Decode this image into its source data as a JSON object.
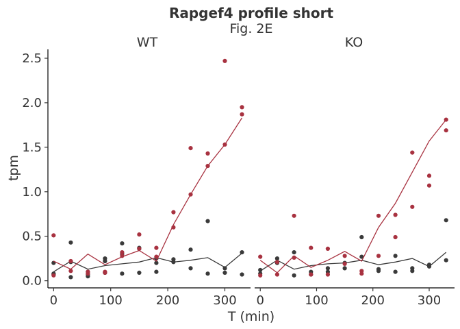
{
  "chart_data": {
    "type": "scatter",
    "title": "Rapgef4 profile short",
    "subtitle": "Fig. 2E",
    "xlabel": "T (min)",
    "ylabel": "tpm",
    "xlim": [
      -10,
      345
    ],
    "ylim": [
      -0.08,
      2.6
    ],
    "x_ticks": [
      0,
      100,
      200,
      300
    ],
    "x_tick_labels": [
      "0",
      "100",
      "200",
      "300"
    ],
    "y_ticks": [
      0,
      0.5,
      1.0,
      1.5,
      2.0,
      2.5
    ],
    "y_tick_labels": [
      "0.0",
      "0.5",
      "1.0",
      "1.5",
      "2.0",
      "2.5"
    ],
    "grid": false,
    "legend": "none",
    "series_colors": [
      "#3a3a3a",
      "#a83240"
    ],
    "facets": [
      {
        "label": "WT",
        "series": [
          {
            "points": [
              [
                0,
                0.2
              ],
              [
                0,
                0.08
              ],
              [
                0,
                0.07
              ],
              [
                30,
                0.43
              ],
              [
                30,
                0.21
              ],
              [
                30,
                0.04
              ],
              [
                60,
                0.07
              ],
              [
                60,
                0.05
              ],
              [
                60,
                0.1
              ],
              [
                90,
                0.25
              ],
              [
                90,
                0.22
              ],
              [
                90,
                0.09
              ],
              [
                120,
                0.42
              ],
              [
                120,
                0.3
              ],
              [
                120,
                0.08
              ],
              [
                150,
                0.36
              ],
              [
                150,
                0.09
              ],
              [
                150,
                0.37
              ],
              [
                180,
                0.25
              ],
              [
                180,
                0.2
              ],
              [
                180,
                0.1
              ],
              [
                210,
                0.24
              ],
              [
                210,
                0.21
              ],
              [
                240,
                0.35
              ],
              [
                240,
                0.14
              ],
              [
                270,
                0.67
              ],
              [
                270,
                0.08
              ],
              [
                300,
                0.14
              ],
              [
                300,
                0.09
              ],
              [
                330,
                0.32
              ],
              [
                330,
                0.07
              ]
            ],
            "line": [
              [
                0,
                0.1
              ],
              [
                30,
                0.22
              ],
              [
                60,
                0.13
              ],
              [
                90,
                0.17
              ],
              [
                120,
                0.19
              ],
              [
                150,
                0.21
              ],
              [
                180,
                0.26
              ],
              [
                210,
                0.21
              ],
              [
                240,
                0.23
              ],
              [
                270,
                0.26
              ],
              [
                300,
                0.15
              ],
              [
                330,
                0.31
              ]
            ]
          },
          {
            "points": [
              [
                0,
                0.51
              ],
              [
                0,
                0.06
              ],
              [
                30,
                0.22
              ],
              [
                30,
                0.11
              ],
              [
                60,
                0.1
              ],
              [
                60,
                0.08
              ],
              [
                90,
                0.1
              ],
              [
                90,
                0.09
              ],
              [
                120,
                0.32
              ],
              [
                120,
                0.28
              ],
              [
                150,
                0.52
              ],
              [
                150,
                0.36
              ],
              [
                180,
                0.37
              ],
              [
                180,
                0.27
              ],
              [
                210,
                0.77
              ],
              [
                210,
                0.6
              ],
              [
                240,
                1.49
              ],
              [
                240,
                0.97
              ],
              [
                270,
                1.43
              ],
              [
                270,
                1.29
              ],
              [
                300,
                2.47
              ],
              [
                300,
                1.53
              ],
              [
                330,
                1.95
              ],
              [
                330,
                1.87
              ]
            ],
            "line": [
              [
                0,
                0.22
              ],
              [
                30,
                0.13
              ],
              [
                60,
                0.3
              ],
              [
                90,
                0.18
              ],
              [
                120,
                0.27
              ],
              [
                150,
                0.34
              ],
              [
                180,
                0.22
              ],
              [
                210,
                0.63
              ],
              [
                240,
                0.97
              ],
              [
                270,
                1.29
              ],
              [
                300,
                1.53
              ],
              [
                330,
                1.83
              ]
            ]
          }
        ]
      },
      {
        "label": "KO",
        "series": [
          {
            "points": [
              [
                0,
                0.12
              ],
              [
                0,
                0.08
              ],
              [
                30,
                0.25
              ],
              [
                30,
                0.2
              ],
              [
                60,
                0.32
              ],
              [
                60,
                0.06
              ],
              [
                90,
                0.1
              ],
              [
                90,
                0.07
              ],
              [
                120,
                0.14
              ],
              [
                120,
                0.1
              ],
              [
                150,
                0.2
              ],
              [
                150,
                0.14
              ],
              [
                180,
                0.49
              ],
              [
                180,
                0.27
              ],
              [
                210,
                0.13
              ],
              [
                210,
                0.11
              ],
              [
                240,
                0.28
              ],
              [
                240,
                0.1
              ],
              [
                270,
                0.14
              ],
              [
                270,
                0.11
              ],
              [
                300,
                0.18
              ],
              [
                300,
                0.16
              ],
              [
                330,
                0.68
              ],
              [
                330,
                0.23
              ]
            ],
            "line": [
              [
                0,
                0.11
              ],
              [
                30,
                0.23
              ],
              [
                60,
                0.13
              ],
              [
                90,
                0.17
              ],
              [
                120,
                0.19
              ],
              [
                150,
                0.2
              ],
              [
                180,
                0.23
              ],
              [
                210,
                0.18
              ],
              [
                240,
                0.21
              ],
              [
                270,
                0.25
              ],
              [
                300,
                0.16
              ],
              [
                330,
                0.32
              ]
            ]
          },
          {
            "points": [
              [
                0,
                0.27
              ],
              [
                0,
                0.06
              ],
              [
                30,
                0.21
              ],
              [
                30,
                0.07
              ],
              [
                60,
                0.73
              ],
              [
                60,
                0.26
              ],
              [
                90,
                0.37
              ],
              [
                90,
                0.07
              ],
              [
                120,
                0.36
              ],
              [
                120,
                0.07
              ],
              [
                150,
                0.28
              ],
              [
                150,
                0.19
              ],
              [
                180,
                0.11
              ],
              [
                180,
                0.08
              ],
              [
                210,
                0.73
              ],
              [
                210,
                0.28
              ],
              [
                240,
                0.74
              ],
              [
                240,
                0.49
              ],
              [
                270,
                1.44
              ],
              [
                270,
                0.83
              ],
              [
                300,
                1.18
              ],
              [
                300,
                1.07
              ],
              [
                330,
                1.81
              ],
              [
                330,
                1.69
              ]
            ],
            "line": [
              [
                0,
                0.23
              ],
              [
                30,
                0.09
              ],
              [
                60,
                0.28
              ],
              [
                90,
                0.15
              ],
              [
                120,
                0.23
              ],
              [
                150,
                0.33
              ],
              [
                180,
                0.22
              ],
              [
                210,
                0.6
              ],
              [
                240,
                0.87
              ],
              [
                270,
                1.22
              ],
              [
                300,
                1.57
              ],
              [
                330,
                1.81
              ]
            ]
          }
        ]
      }
    ]
  }
}
